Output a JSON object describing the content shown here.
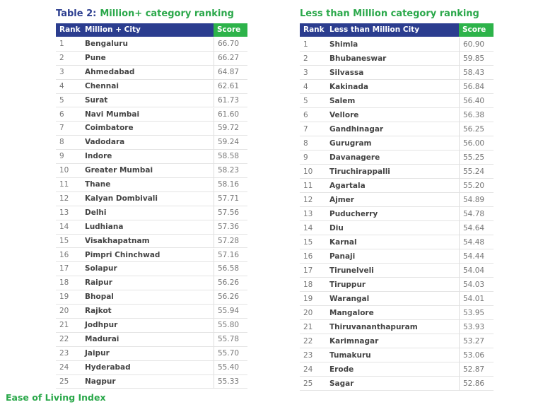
{
  "tables": [
    {
      "title_prefix": "Table 2:",
      "title": "Million+ category ranking",
      "header": [
        "Rank",
        "Million + City",
        "Score"
      ],
      "rows": [
        [
          "1",
          "Bengaluru",
          "66.70"
        ],
        [
          "2",
          "Pune",
          "66.27"
        ],
        [
          "3",
          "Ahmedabad",
          "64.87"
        ],
        [
          "4",
          "Chennai",
          "62.61"
        ],
        [
          "5",
          "Surat",
          "61.73"
        ],
        [
          "6",
          "Navi Mumbai",
          "61.60"
        ],
        [
          "7",
          "Coimbatore",
          "59.72"
        ],
        [
          "8",
          "Vadodara",
          "59.24"
        ],
        [
          "9",
          "Indore",
          "58.58"
        ],
        [
          "10",
          "Greater Mumbai",
          "58.23"
        ],
        [
          "11",
          "Thane",
          "58.16"
        ],
        [
          "12",
          "Kalyan Dombivali",
          "57.71"
        ],
        [
          "13",
          "Delhi",
          "57.56"
        ],
        [
          "14",
          "Ludhiana",
          "57.36"
        ],
        [
          "15",
          "Visakhapatnam",
          "57.28"
        ],
        [
          "16",
          "Pimpri Chinchwad",
          "57.16"
        ],
        [
          "17",
          "Solapur",
          "56.58"
        ],
        [
          "18",
          "Raipur",
          "56.26"
        ],
        [
          "19",
          "Bhopal",
          "56.26"
        ],
        [
          "20",
          "Rajkot",
          "55.94"
        ],
        [
          "21",
          "Jodhpur",
          "55.80"
        ],
        [
          "22",
          "Madurai",
          "55.78"
        ],
        [
          "23",
          "Jaipur",
          "55.70"
        ],
        [
          "24",
          "Hyderabad",
          "55.40"
        ],
        [
          "25",
          "Nagpur",
          "55.33"
        ]
      ]
    },
    {
      "title": "Less than Million category ranking",
      "header": [
        "Rank",
        "Less than Million City",
        "Score"
      ],
      "rows": [
        [
          "1",
          "Shimla",
          "60.90"
        ],
        [
          "2",
          "Bhubaneswar",
          "59.85"
        ],
        [
          "3",
          "Silvassa",
          "58.43"
        ],
        [
          "4",
          "Kakinada",
          "56.84"
        ],
        [
          "5",
          "Salem",
          "56.40"
        ],
        [
          "6",
          "Vellore",
          "56.38"
        ],
        [
          "7",
          "Gandhinagar",
          "56.25"
        ],
        [
          "8",
          "Gurugram",
          "56.00"
        ],
        [
          "9",
          "Davanagere",
          "55.25"
        ],
        [
          "10",
          "Tiruchirappalli",
          "55.24"
        ],
        [
          "11",
          "Agartala",
          "55.20"
        ],
        [
          "12",
          "Ajmer",
          "54.89"
        ],
        [
          "13",
          "Puducherry",
          "54.78"
        ],
        [
          "14",
          "Diu",
          "54.64"
        ],
        [
          "15",
          "Karnal",
          "54.48"
        ],
        [
          "16",
          "Panaji",
          "54.44"
        ],
        [
          "17",
          "Tirunelveli",
          "54.04"
        ],
        [
          "18",
          "Tiruppur",
          "54.03"
        ],
        [
          "19",
          "Warangal",
          "54.01"
        ],
        [
          "20",
          "Mangalore",
          "53.95"
        ],
        [
          "21",
          "Thiruvananthapuram",
          "53.93"
        ],
        [
          "22",
          "Karimnagar",
          "53.27"
        ],
        [
          "23",
          "Tumakuru",
          "53.06"
        ],
        [
          "24",
          "Erode",
          "52.87"
        ],
        [
          "25",
          "Sagar",
          "52.86"
        ]
      ]
    }
  ],
  "footer": "Ease of Living Index"
}
